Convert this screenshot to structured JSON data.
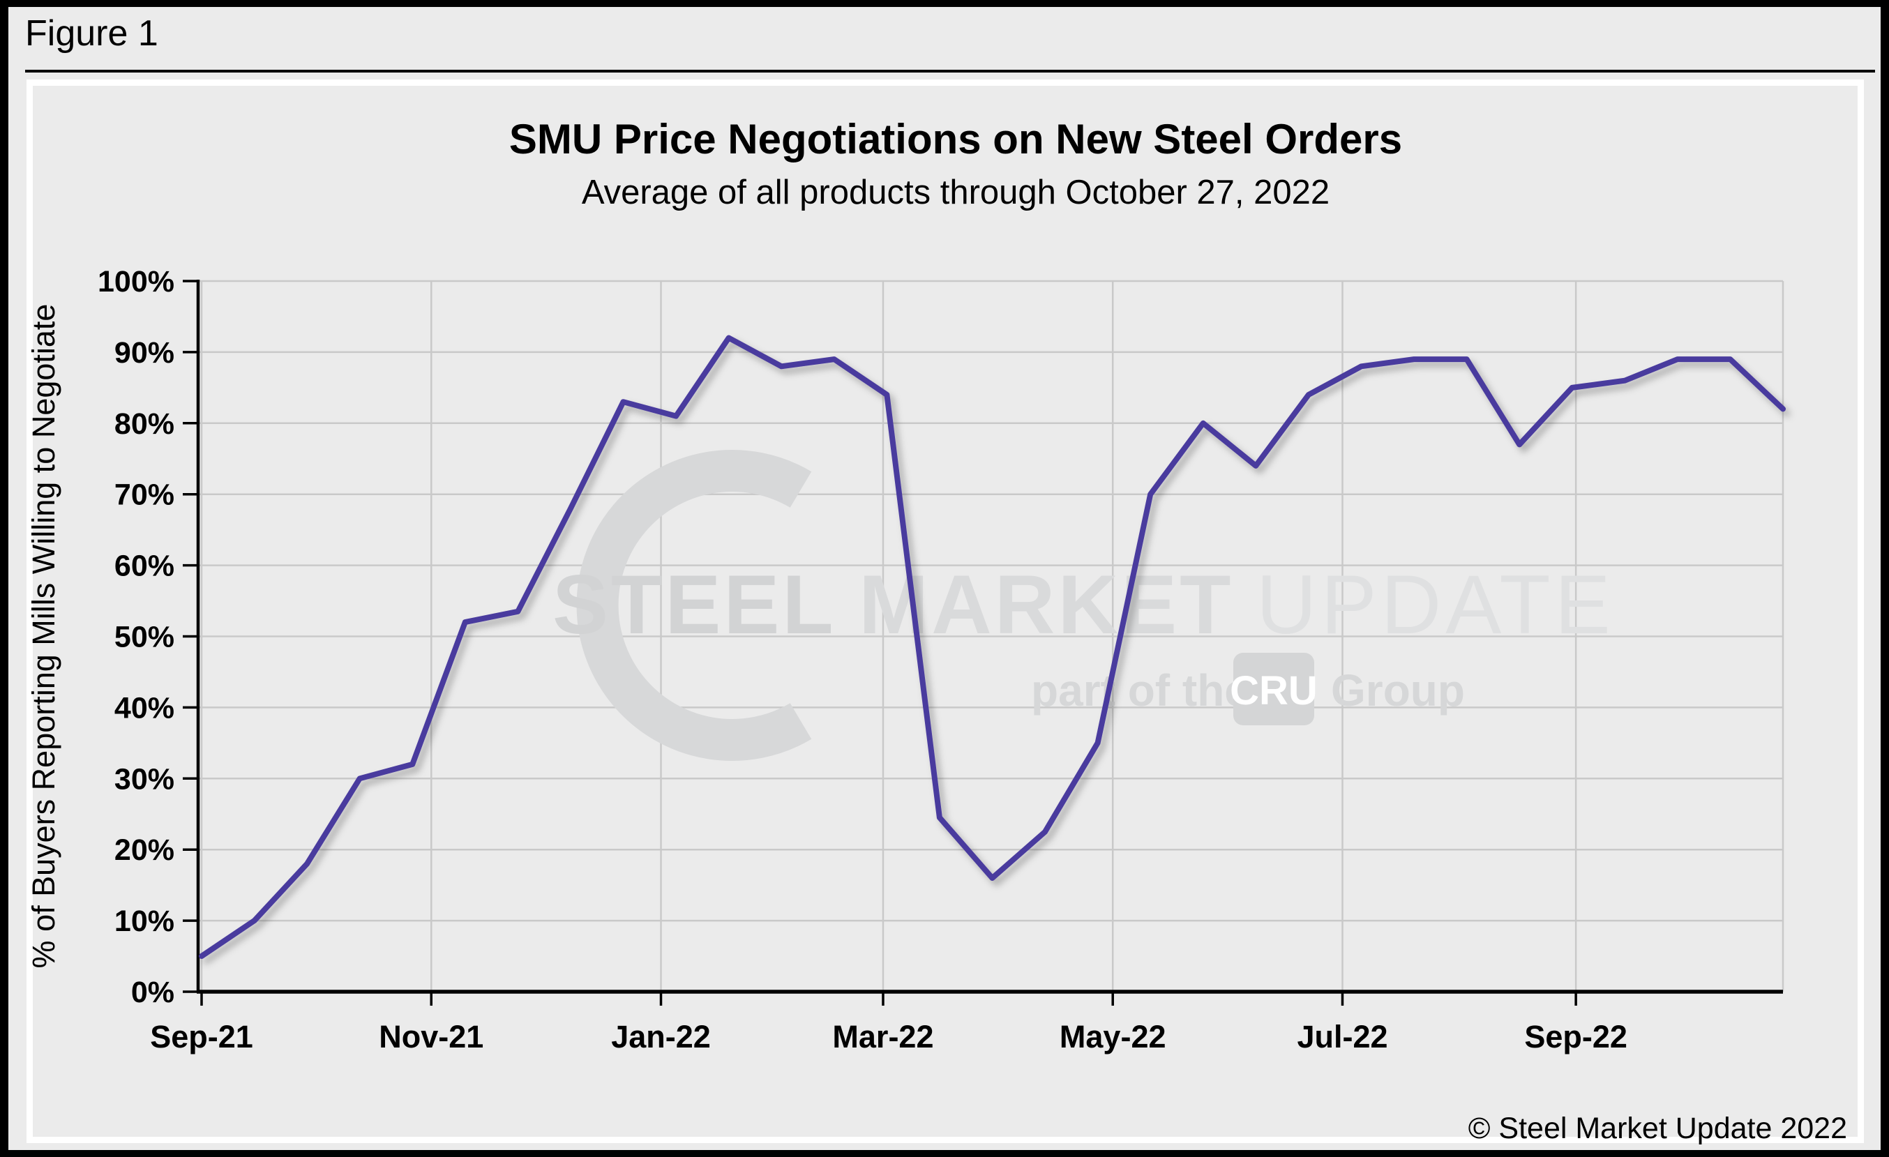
{
  "figure_label": "Figure 1",
  "copyright": "© Steel Market Update 2022",
  "watermark": {
    "steel": "STEEL",
    "market": "MARKET",
    "update": "UPDATE",
    "tagline_prefix": "part of the",
    "cru": "CRU",
    "group": "Group"
  },
  "chart_data": {
    "type": "line",
    "title": "SMU Price Negotiations on New Steel Orders",
    "subtitle": "Average of all products through October 27, 2022",
    "xlabel": "",
    "ylabel": "% of Buyers Reporting Mills Willing to Negotiate",
    "ylim": [
      0,
      100
    ],
    "grid": true,
    "legend_position": "none",
    "line_color": "#4a3b9e",
    "background_color": "#ebebeb",
    "gridline_color": "#c9c9c9",
    "y_ticks": [
      {
        "label": "0%",
        "value": 0
      },
      {
        "label": "10%",
        "value": 10
      },
      {
        "label": "20%",
        "value": 20
      },
      {
        "label": "30%",
        "value": 30
      },
      {
        "label": "40%",
        "value": 40
      },
      {
        "label": "50%",
        "value": 50
      },
      {
        "label": "60%",
        "value": 60
      },
      {
        "label": "70%",
        "value": 70
      },
      {
        "label": "80%",
        "value": 80
      },
      {
        "label": "90%",
        "value": 90
      },
      {
        "label": "100%",
        "value": 100
      }
    ],
    "x_ticks": [
      {
        "label": "Sep-21",
        "day": 0
      },
      {
        "label": "Nov-21",
        "day": 61
      },
      {
        "label": "Jan-22",
        "day": 122
      },
      {
        "label": "Mar-22",
        "day": 181
      },
      {
        "label": "May-22",
        "day": 242
      },
      {
        "label": "Jul-22",
        "day": 303
      },
      {
        "label": "Sep-22",
        "day": 365
      }
    ],
    "x_total_days": 420,
    "survey_cadence_days": 14,
    "points": [
      {
        "date": "9/1/21",
        "value": 5
      },
      {
        "date": "9/15/21",
        "value": 10
      },
      {
        "date": "9/29/21",
        "value": 18
      },
      {
        "date": "10/13/21",
        "value": 30
      },
      {
        "date": "10/27/21",
        "value": 32
      },
      {
        "date": "11/10/21",
        "value": 52
      },
      {
        "date": "11/24/21",
        "value": 53.5
      },
      {
        "date": "12/8/21",
        "value": 68
      },
      {
        "date": "12/22/21",
        "value": 83
      },
      {
        "date": "1/5/22",
        "value": 81
      },
      {
        "date": "1/19/22",
        "value": 92
      },
      {
        "date": "2/2/22",
        "value": 88
      },
      {
        "date": "2/16/22",
        "value": 89
      },
      {
        "date": "3/2/22",
        "value": 84
      },
      {
        "date": "3/16/22",
        "value": 24.5
      },
      {
        "date": "3/30/22",
        "value": 16
      },
      {
        "date": "4/13/22",
        "value": 22.5
      },
      {
        "date": "4/27/22",
        "value": 35
      },
      {
        "date": "5/11/22",
        "value": 70
      },
      {
        "date": "5/25/22",
        "value": 80
      },
      {
        "date": "6/8/22",
        "value": 74
      },
      {
        "date": "6/22/22",
        "value": 84
      },
      {
        "date": "7/6/22",
        "value": 88
      },
      {
        "date": "7/20/22",
        "value": 89
      },
      {
        "date": "8/3/22",
        "value": 89
      },
      {
        "date": "8/17/22",
        "value": 77
      },
      {
        "date": "8/31/22",
        "value": 85
      },
      {
        "date": "9/14/22",
        "value": 86
      },
      {
        "date": "9/28/22",
        "value": 89
      },
      {
        "date": "10/12/22",
        "value": 89
      },
      {
        "date": "10/26/22",
        "value": 82
      }
    ]
  }
}
